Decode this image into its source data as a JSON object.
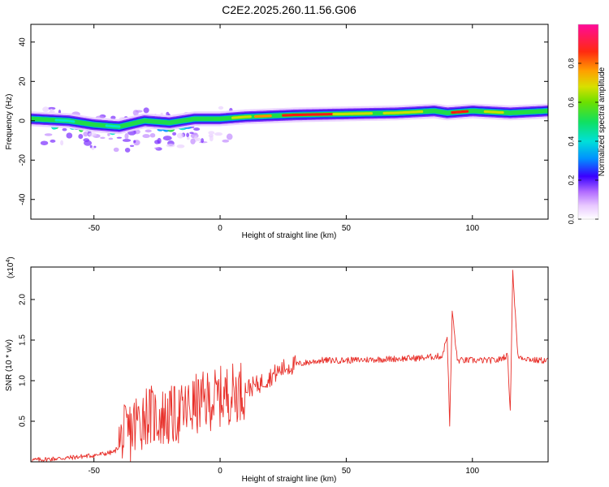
{
  "title": "C2E2.2025.260.11.56.G06",
  "chart_data": [
    {
      "type": "heatmap",
      "name": "spectrogram",
      "xlabel": "Height of straight line (km)",
      "ylabel": "Frequency (Hz)",
      "xlim": [
        -75,
        130
      ],
      "ylim": [
        -50,
        49
      ],
      "xticks": [
        -50,
        0,
        50,
        100
      ],
      "xtick_labels": [
        "-50",
        "0",
        "50",
        "100"
      ],
      "yticks": [
        -40,
        -20,
        0,
        20,
        40
      ],
      "ytick_labels": [
        "-40",
        "-20",
        "0",
        "20",
        "40"
      ],
      "colorbar": {
        "label": "Normalized spectral amplitude",
        "range": [
          0,
          1
        ],
        "ticks": [
          0.0,
          0.2,
          0.4,
          0.6,
          0.8
        ],
        "tick_labels": [
          "0.0",
          "0.2",
          "0.4",
          "0.6",
          "0.8"
        ]
      },
      "ridge": [
        {
          "x": -75,
          "y": 1
        },
        {
          "x": -60,
          "y": 0
        },
        {
          "x": -50,
          "y": -2
        },
        {
          "x": -40,
          "y": -3
        },
        {
          "x": -30,
          "y": 0
        },
        {
          "x": -20,
          "y": -1
        },
        {
          "x": -10,
          "y": 1
        },
        {
          "x": 0,
          "y": 1
        },
        {
          "x": 10,
          "y": 2
        },
        {
          "x": 30,
          "y": 3
        },
        {
          "x": 50,
          "y": 3.5
        },
        {
          "x": 70,
          "y": 4
        },
        {
          "x": 85,
          "y": 5
        },
        {
          "x": 90,
          "y": 4
        },
        {
          "x": 100,
          "y": 5
        },
        {
          "x": 115,
          "y": 4
        },
        {
          "x": 130,
          "y": 5
        }
      ]
    },
    {
      "type": "line",
      "name": "snr",
      "xlabel": "Height of straight line (km)",
      "ylabel": "SNR (10 * v/v)",
      "scale_label": "(x10",
      "scale_exp": "4",
      "scale_close": ")",
      "xlim": [
        -75,
        130
      ],
      "ylim": [
        0,
        2.4
      ],
      "xticks": [
        -50,
        0,
        50,
        100
      ],
      "xtick_labels": [
        "-50",
        "0",
        "50",
        "100"
      ],
      "yticks": [
        0.5,
        1.0,
        1.5,
        2.0
      ],
      "ytick_labels": [
        "0.5",
        "1.0",
        "1.5",
        "2.0"
      ],
      "color": "#e8302a",
      "series": [
        {
          "name": "SNR",
          "x": [
            -75,
            -60,
            -50,
            -42,
            -36,
            -30,
            -25,
            -20,
            -15,
            -10,
            -5,
            0,
            5,
            10,
            15,
            20,
            25,
            30,
            40,
            50,
            60,
            70,
            80,
            86,
            88,
            90,
            91,
            92,
            94,
            100,
            110,
            113,
            114,
            115,
            116,
            118,
            125,
            130
          ],
          "y": [
            0.02,
            0.05,
            0.08,
            0.12,
            0.35,
            0.6,
            0.55,
            0.55,
            0.6,
            0.7,
            0.75,
            0.8,
            0.85,
            0.9,
            0.95,
            1.05,
            1.15,
            1.2,
            1.25,
            1.25,
            1.26,
            1.27,
            1.28,
            1.3,
            1.3,
            1.55,
            0.45,
            1.85,
            1.25,
            1.25,
            1.25,
            1.3,
            1.3,
            0.6,
            2.35,
            1.3,
            1.25,
            1.25
          ]
        }
      ]
    }
  ]
}
